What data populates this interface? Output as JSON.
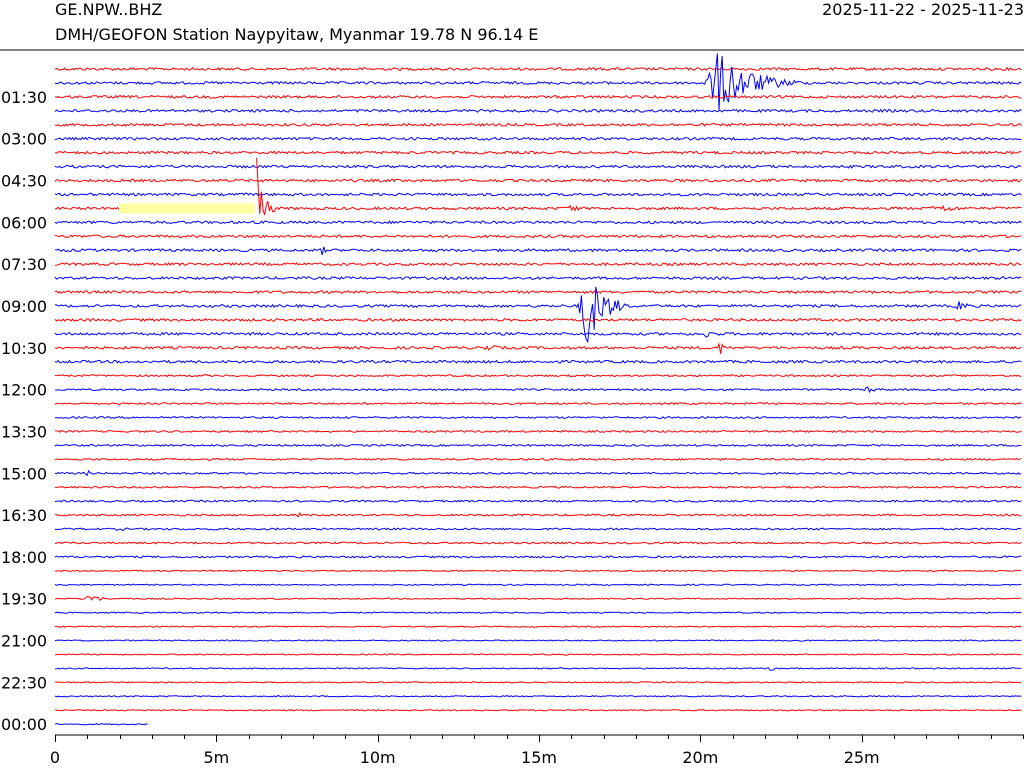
{
  "header": {
    "station_code": "GE.NPW..BHZ",
    "station_description": "DMH/GEOFON Station Naypyitaw, Myanmar  19.78 N 96.14 E",
    "date_range": "2025-11-22 - 2025-11-23"
  },
  "colors": {
    "trace_a": "#ff0000",
    "trace_b": "#0000ff",
    "gap_highlight": "#ffffa0",
    "axis": "#000000"
  },
  "chart_data": {
    "type": "line",
    "title": "",
    "xlabel": "",
    "ylabel": "",
    "x_unit": "minutes",
    "xlim": [
      0,
      30
    ],
    "x_ticks": [
      {
        "value": 0,
        "label": "0"
      },
      {
        "value": 5,
        "label": "5m"
      },
      {
        "value": 10,
        "label": "10m"
      },
      {
        "value": 15,
        "label": "15m"
      },
      {
        "value": 20,
        "label": "20m"
      },
      {
        "value": 25,
        "label": "25m"
      }
    ],
    "x_minor_tick_step": 1,
    "row_count": 47,
    "row_step_minutes": 30,
    "row_color_cycle": [
      "red",
      "blue"
    ],
    "y_labels": [
      {
        "row": 2,
        "label": "01:30"
      },
      {
        "row": 5,
        "label": "03:00"
      },
      {
        "row": 8,
        "label": "04:30"
      },
      {
        "row": 11,
        "label": "06:00"
      },
      {
        "row": 14,
        "label": "07:30"
      },
      {
        "row": 17,
        "label": "09:00"
      },
      {
        "row": 20,
        "label": "10:30"
      },
      {
        "row": 23,
        "label": "12:00"
      },
      {
        "row": 26,
        "label": "13:30"
      },
      {
        "row": 29,
        "label": "15:00"
      },
      {
        "row": 32,
        "label": "16:30"
      },
      {
        "row": 35,
        "label": "18:00"
      },
      {
        "row": 38,
        "label": "19:30"
      },
      {
        "row": 41,
        "label": "21:00"
      },
      {
        "row": 44,
        "label": "22:30"
      },
      {
        "row": 47,
        "label": "00:00"
      }
    ],
    "last_trace_end_minute": 2.9,
    "data_gap": {
      "row": 10,
      "start_min": 2.0,
      "end_min": 6.2
    },
    "events": [
      {
        "row": 1,
        "start_min": 20.1,
        "end_min": 23.2,
        "amplitude": 32
      },
      {
        "row": 10,
        "start_min": 6.15,
        "end_min": 6.8,
        "amplitude": 52
      },
      {
        "row": 10,
        "start_min": 15.8,
        "end_min": 16.7,
        "amplitude": 6
      },
      {
        "row": 10,
        "start_min": 27.0,
        "end_min": 29.6,
        "amplitude": 4
      },
      {
        "row": 13,
        "start_min": 8.2,
        "end_min": 8.7,
        "amplitude": 5
      },
      {
        "row": 17,
        "start_min": 16.2,
        "end_min": 17.8,
        "amplitude": 44
      },
      {
        "row": 17,
        "start_min": 27.9,
        "end_min": 28.7,
        "amplitude": 7
      },
      {
        "row": 19,
        "start_min": 20.0,
        "end_min": 21.3,
        "amplitude": 4
      },
      {
        "row": 20,
        "start_min": 13.0,
        "end_min": 14.8,
        "amplitude": 4
      },
      {
        "row": 20,
        "start_min": 20.5,
        "end_min": 21.2,
        "amplitude": 7
      },
      {
        "row": 23,
        "start_min": 24.9,
        "end_min": 26.6,
        "amplitude": 3
      },
      {
        "row": 29,
        "start_min": 0.9,
        "end_min": 1.6,
        "amplitude": 3
      },
      {
        "row": 32,
        "start_min": 7.5,
        "end_min": 7.9,
        "amplitude": 3
      },
      {
        "row": 33,
        "start_min": 1.8,
        "end_min": 3.0,
        "amplitude": 2
      },
      {
        "row": 38,
        "start_min": 0.8,
        "end_min": 2.1,
        "amplitude": 5
      },
      {
        "row": 43,
        "start_min": 22.1,
        "end_min": 22.6,
        "amplitude": 3
      }
    ]
  }
}
